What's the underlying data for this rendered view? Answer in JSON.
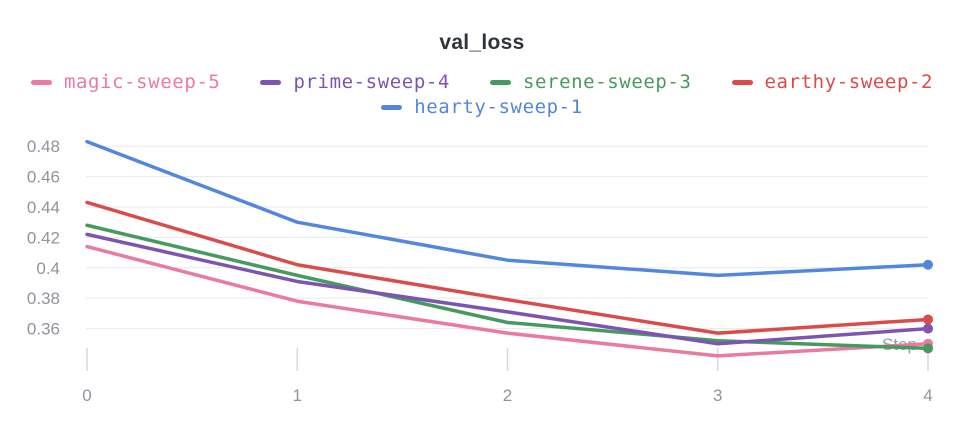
{
  "chart_data": {
    "type": "line",
    "title": "val_loss",
    "xlabel": "Step",
    "x": [
      0,
      1,
      2,
      3,
      4
    ],
    "xticks": [
      "0",
      "1",
      "2",
      "3",
      "4"
    ],
    "xlim": [
      0,
      4
    ],
    "yticks": [
      "0.48",
      "0.46",
      "0.44",
      "0.42",
      "0.4",
      "0.38",
      "0.36"
    ],
    "ytick_values": [
      0.48,
      0.46,
      0.44,
      0.42,
      0.4,
      0.38,
      0.36
    ],
    "ylim": [
      0.338,
      0.492
    ],
    "grid": "horizontal",
    "legend_position": "top",
    "end_markers": true,
    "axis_color": "#8f949d",
    "grid_color": "#e9e9e9",
    "tick_color": "#d9d9d9",
    "title_color": "#30353c",
    "series": [
      {
        "name": "magic-sweep-5",
        "color": "#E87B9F",
        "values": [
          0.414,
          0.378,
          0.357,
          0.342,
          0.35
        ]
      },
      {
        "name": "prime-sweep-4",
        "color": "#7D54B2",
        "values": [
          0.422,
          0.391,
          0.371,
          0.35,
          0.36
        ]
      },
      {
        "name": "serene-sweep-3",
        "color": "#479A5F",
        "values": [
          0.428,
          0.395,
          0.364,
          0.352,
          0.347
        ]
      },
      {
        "name": "earthy-sweep-2",
        "color": "#DA4C4C",
        "values": [
          0.443,
          0.402,
          0.379,
          0.357,
          0.366
        ]
      },
      {
        "name": "hearty-sweep-1",
        "color": "#5387DD",
        "values": [
          0.483,
          0.43,
          0.405,
          0.395,
          0.402
        ]
      }
    ]
  }
}
